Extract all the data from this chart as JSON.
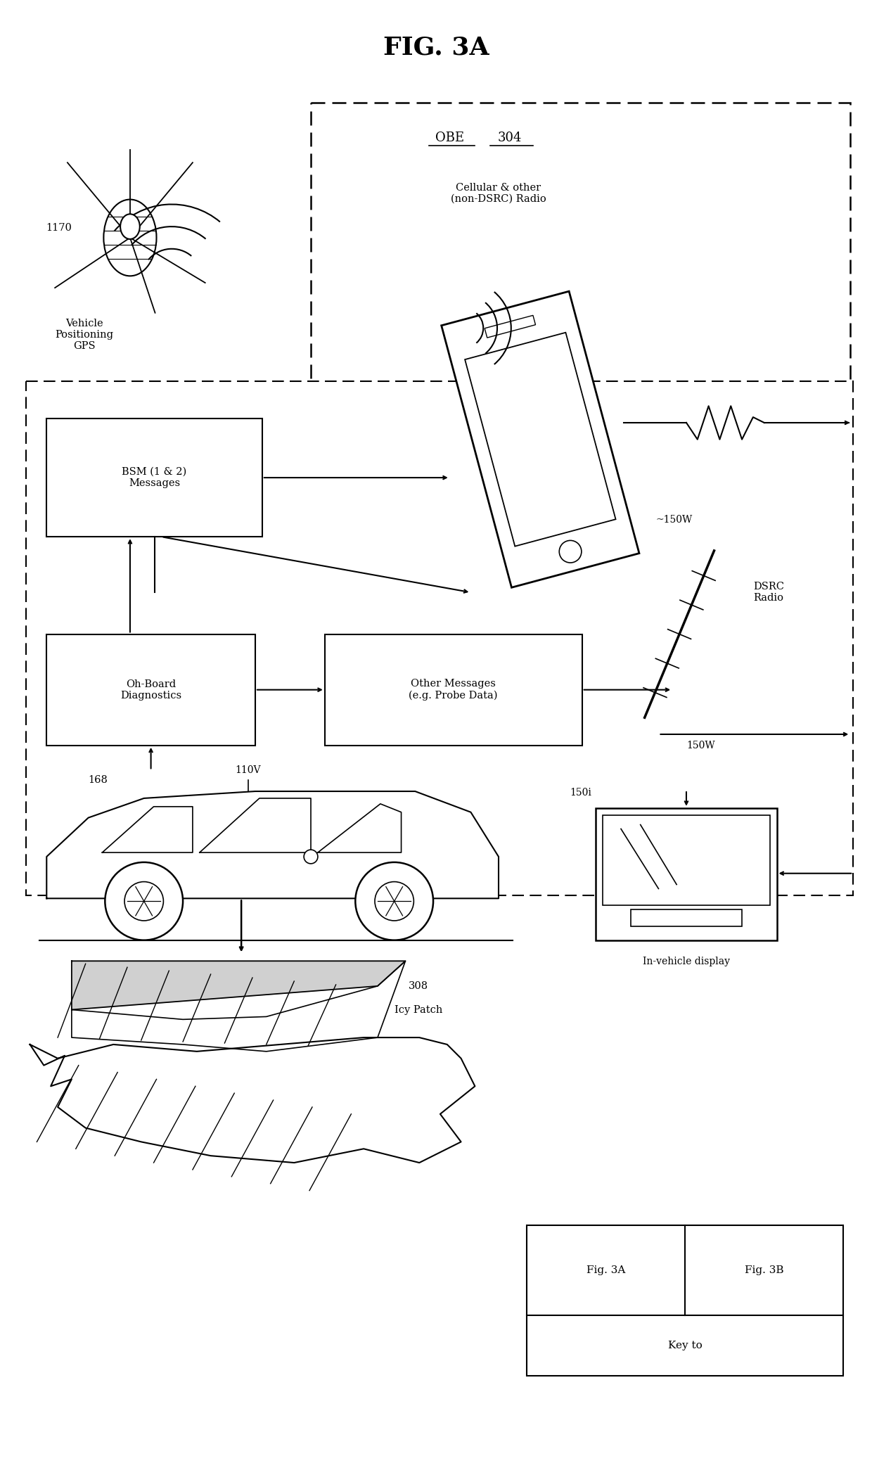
{
  "title": "FIG. 3A",
  "bg_color": "#ffffff",
  "title_fontsize": 26,
  "fig_width": 12.4,
  "fig_height": 20.8,
  "labels": {
    "obeLabel_obe": "OBE",
    "obeLabel_304": "304",
    "cellularLabel": "Cellular & other\n(non-DSRC) Radio",
    "bsmLabel": "BSM (1 & 2)\nMessages",
    "obdLabel": "Oh-Board\nDiagnostics",
    "otherMsgLabel": "Other Messages\n(e.g. Probe Data)",
    "dsrcLabel": "DSRC\nRadio",
    "gpsLabel": "Vehicle\nPositioning\nGPS",
    "gpsNum": "1170",
    "label150W_top": "~150W",
    "label150W_bot": "150W",
    "label168": "168",
    "label110V": "110V",
    "label150i": "150i",
    "invehicleLabel": "In-vehicle display",
    "icyPatchLabel": "Icy Patch",
    "icy308": "308",
    "figKeyLabel": "Key to",
    "fig3a": "Fig. 3A",
    "fig3b": "Fig. 3B"
  }
}
